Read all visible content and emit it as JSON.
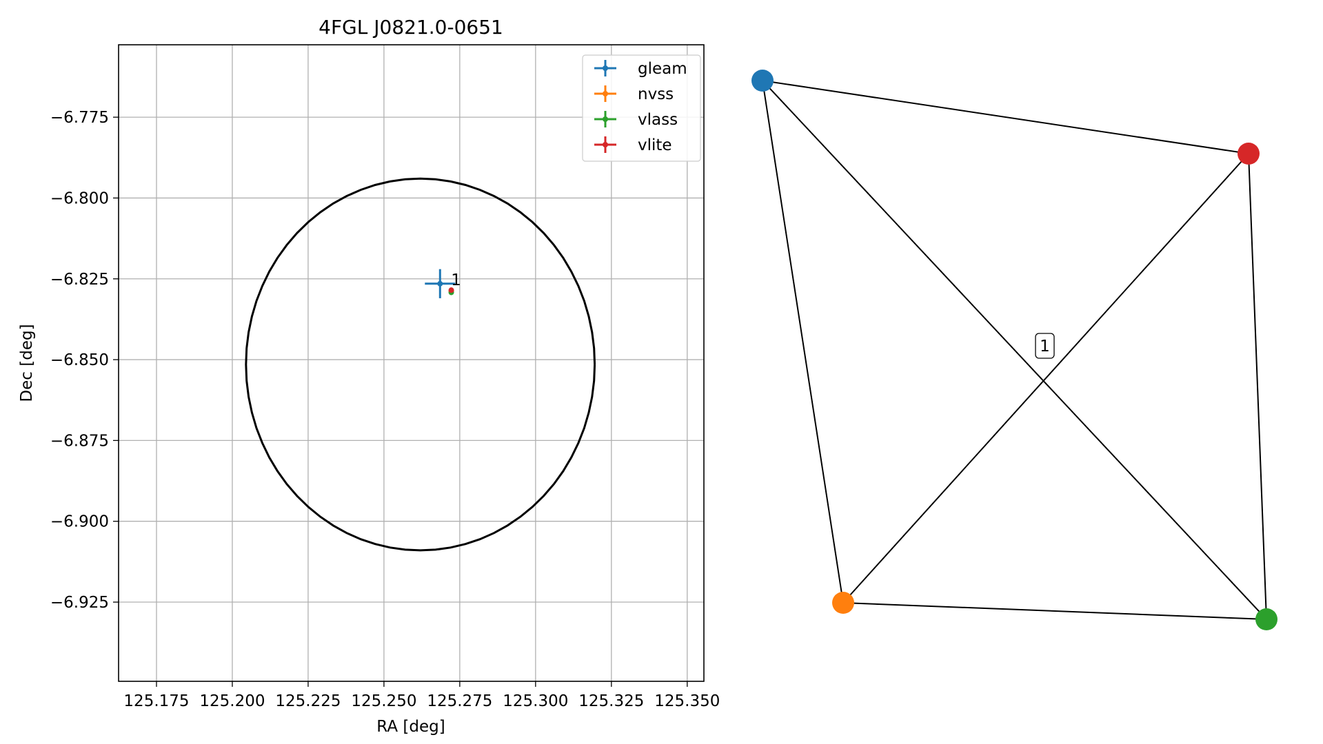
{
  "chart_data": [
    {
      "type": "scatter",
      "title": "4FGL J0821.0-0651",
      "xlabel": "RA [deg]",
      "ylabel": "Dec [deg]",
      "xlim": [
        125.1625,
        125.3555
      ],
      "ylim": [
        -6.9495,
        -6.7526
      ],
      "x_ticks": [
        125.175,
        125.2,
        125.225,
        125.25,
        125.275,
        125.3,
        125.325,
        125.35
      ],
      "x_tick_labels": [
        "125.175",
        "125.200",
        "125.225",
        "125.250",
        "125.275",
        "125.300",
        "125.325",
        "125.350"
      ],
      "y_ticks": [
        -6.775,
        -6.8,
        -6.825,
        -6.85,
        -6.875,
        -6.9,
        -6.925
      ],
      "y_tick_labels": [
        "−6.775",
        "−6.800",
        "−6.825",
        "−6.850",
        "−6.875",
        "−6.900",
        "−6.925"
      ],
      "grid": true,
      "legend_position": "top-right",
      "circle": {
        "ra": 125.262,
        "dec": -6.8515,
        "radius": 0.0575
      },
      "series": [
        {
          "name": "gleam",
          "color": "#1f77b4",
          "x": 125.2685,
          "y": -6.8265,
          "xerr": 0.005,
          "yerr": 0.0045
        },
        {
          "name": "nvss",
          "color": "#ff7f0e",
          "x": 125.2722,
          "y": -6.8288,
          "xerr": 0.0003,
          "yerr": 0.0003
        },
        {
          "name": "vlass",
          "color": "#2ca02c",
          "x": 125.2722,
          "y": -6.8292,
          "xerr": 0.0002,
          "yerr": 0.0002
        },
        {
          "name": "vlite",
          "color": "#d62728",
          "x": 125.2722,
          "y": -6.8285,
          "xerr": 0.0004,
          "yerr": 0.0004
        }
      ],
      "annotations": [
        {
          "text": "1",
          "x": 125.2735,
          "y": -6.8255
        }
      ]
    },
    {
      "type": "network",
      "nodes": [
        {
          "id": "gleam",
          "color": "#1f77b4"
        },
        {
          "id": "vlite",
          "color": "#d62728"
        },
        {
          "id": "nvss",
          "color": "#ff7f0e"
        },
        {
          "id": "vlass",
          "color": "#2ca02c"
        }
      ],
      "edges": [
        [
          "gleam",
          "vlite"
        ],
        [
          "gleam",
          "nvss"
        ],
        [
          "gleam",
          "vlass"
        ],
        [
          "vlite",
          "nvss"
        ],
        [
          "vlite",
          "vlass"
        ],
        [
          "nvss",
          "vlass"
        ]
      ],
      "label": "1"
    }
  ]
}
